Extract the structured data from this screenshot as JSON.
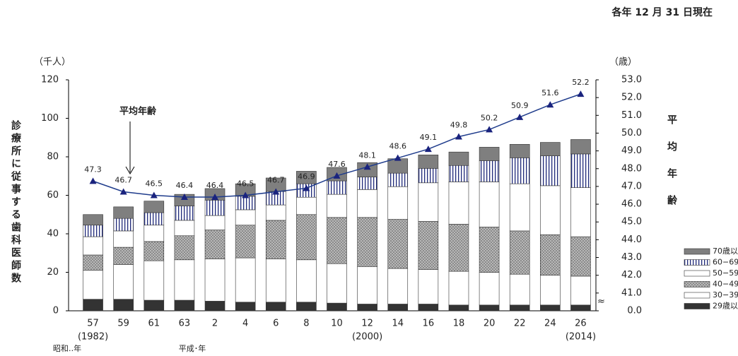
{
  "chart_data": {
    "type": "stacked_bar_line",
    "note": "各年 12 月 31 日現在",
    "y_unit": "（千人）",
    "y2_unit": "（歳）",
    "ylabel": "診療所に従事する歯科医師数",
    "y2label": "平均年齢",
    "annotation": "平均年齢",
    "categories": [
      "57",
      "59",
      "61",
      "63",
      "2",
      "4",
      "6",
      "8",
      "10",
      "12",
      "14",
      "16",
      "18",
      "20",
      "22",
      "24",
      "26"
    ],
    "year_labels": [
      "(1982)",
      null,
      null,
      null,
      null,
      null,
      null,
      null,
      null,
      "(2000)",
      null,
      null,
      null,
      null,
      null,
      null,
      "(2014)"
    ],
    "era_labels": [
      "昭和‥年",
      "平成･年"
    ],
    "ylim": [
      0,
      120
    ],
    "yticks": [
      0,
      20,
      40,
      60,
      80,
      100,
      120
    ],
    "y2lim": [
      0,
      53
    ],
    "y2_break": true,
    "y2ticks": [
      {
        "value": 0,
        "label": "0.0"
      },
      {
        "value": 41,
        "label": "41.0"
      },
      {
        "value": 42,
        "label": "42.0"
      },
      {
        "value": 43,
        "label": "43.0"
      },
      {
        "value": 44,
        "label": "44.0"
      },
      {
        "value": 45,
        "label": "45.0"
      },
      {
        "value": 46,
        "label": "46.0"
      },
      {
        "value": 47,
        "label": "47.0"
      },
      {
        "value": 48,
        "label": "48.0"
      },
      {
        "value": 49,
        "label": "49.0"
      },
      {
        "value": 50,
        "label": "50.0"
      },
      {
        "value": 51,
        "label": "51.0"
      },
      {
        "value": 52,
        "label": "52.0"
      },
      {
        "value": 53,
        "label": "53.0"
      }
    ],
    "series": [
      {
        "name": "29歳以下",
        "color": "#333333",
        "values": [
          6,
          6,
          5.5,
          5.5,
          5,
          4.5,
          4.5,
          4.5,
          4,
          3.5,
          3.5,
          3.5,
          3,
          3,
          3,
          3,
          3
        ]
      },
      {
        "name": "30−39",
        "color": "#ffffff",
        "values": [
          15,
          18,
          20.5,
          21,
          22,
          23,
          22.5,
          22,
          20.5,
          19.5,
          18.5,
          18,
          17.5,
          17,
          16,
          15.5,
          15
        ]
      },
      {
        "name": "40−49",
        "color": "#9a9a9a",
        "pattern": "dots",
        "values": [
          8,
          9,
          10,
          12.5,
          15,
          17,
          20,
          23.5,
          24,
          25.5,
          25.5,
          25,
          24.5,
          23.5,
          22.5,
          21,
          20.5
        ]
      },
      {
        "name": "50−59",
        "color": "#ffffff",
        "values": [
          9.5,
          8.5,
          8.5,
          8,
          7.5,
          8,
          8,
          9,
          12,
          14.5,
          17,
          20,
          22,
          23.5,
          24.5,
          25.5,
          25.5
        ]
      },
      {
        "name": "60−69",
        "color": "#1f2a7a",
        "pattern": "vstripes",
        "values": [
          6,
          6.5,
          6.5,
          7.5,
          8,
          7,
          7,
          7,
          7,
          6.5,
          7,
          7.5,
          8.5,
          11,
          13.5,
          15.5,
          17.5
        ]
      },
      {
        "name": "70歳以上",
        "color": "#7f7f7f",
        "values": [
          5.5,
          6,
          6,
          6,
          6,
          6.5,
          7,
          6.5,
          7,
          7.5,
          7.5,
          7,
          7,
          7,
          7,
          7,
          7.5
        ]
      },
      {
        "name": "平均年齢",
        "color": "#1f3c8c",
        "axis": "y2",
        "values": [
          47.3,
          46.7,
          46.5,
          46.4,
          46.4,
          46.5,
          46.7,
          46.9,
          47.6,
          48.1,
          48.6,
          49.1,
          49.8,
          50.2,
          50.9,
          51.6,
          52.2
        ]
      }
    ]
  }
}
